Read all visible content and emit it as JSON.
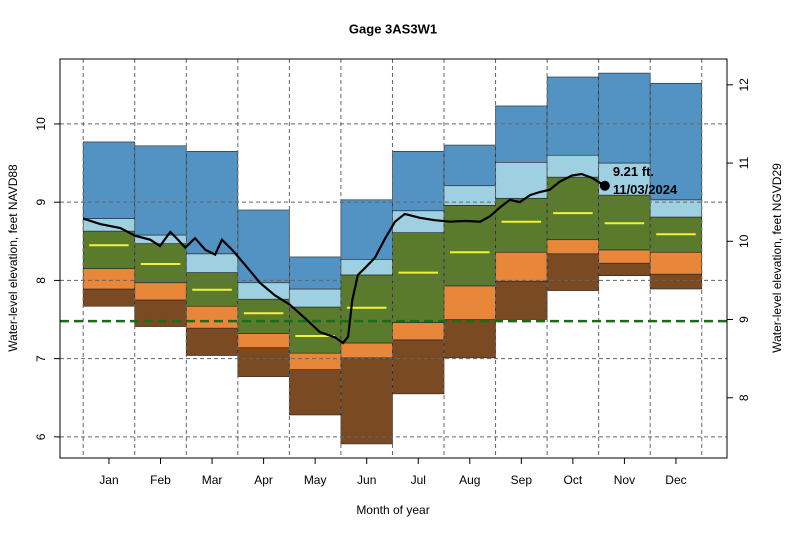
{
  "chart_data": {
    "type": "band",
    "title": "Gage 3AS3W1",
    "x_label": "Month of year",
    "y_label": "Water-level elevation, feet NAVD88",
    "y2_label": "Water-level elevation, feet NGVD29",
    "categories": [
      "Jan",
      "Feb",
      "Mar",
      "Apr",
      "May",
      "Jun",
      "Jul",
      "Aug",
      "Sep",
      "Oct",
      "Nov",
      "Dec"
    ],
    "xlim": [
      -0.45,
      12.49
    ],
    "ylim": [
      5.73,
      10.83
    ],
    "yticks": [
      6,
      7,
      8,
      9,
      10
    ],
    "y2lim": [
      7.23,
      12.33
    ],
    "y2ticks": [
      8,
      9,
      10,
      11,
      12
    ],
    "grid": true,
    "bottom": [
      7.67,
      7.41,
      7.04,
      6.77,
      6.28,
      5.91,
      6.55,
      7.01,
      7.5,
      7.87,
      8.06,
      7.89
    ],
    "series": [
      {
        "color": "#7a4a22",
        "values": [
          7.89,
          7.75,
          7.39,
          7.14,
          6.86,
          7.01,
          7.24,
          7.5,
          7.99,
          8.34,
          8.22,
          8.08
        ]
      },
      {
        "color": "#e8873a",
        "values": [
          8.15,
          7.97,
          7.67,
          7.32,
          7.07,
          7.2,
          7.46,
          7.93,
          8.36,
          8.52,
          8.39,
          8.36
        ]
      },
      {
        "color": "#5a7a2c",
        "values": [
          8.63,
          8.47,
          8.1,
          7.76,
          7.66,
          8.07,
          8.61,
          8.96,
          9.05,
          9.32,
          9.09,
          8.81
        ]
      },
      {
        "color": "#9fd0e2",
        "values": [
          8.79,
          8.58,
          8.34,
          7.97,
          7.89,
          8.27,
          8.89,
          9.21,
          9.51,
          9.6,
          9.5,
          9.03
        ]
      },
      {
        "color": "#5393c4",
        "values": [
          9.77,
          9.72,
          9.65,
          8.9,
          8.3,
          9.03,
          9.65,
          9.73,
          10.23,
          10.6,
          10.65,
          10.52
        ]
      }
    ],
    "median": {
      "color": "#f2f23a",
      "values": [
        8.45,
        8.21,
        7.88,
        7.58,
        7.29,
        7.65,
        8.1,
        8.36,
        8.75,
        8.86,
        8.73,
        8.59
      ]
    },
    "reference": {
      "color": "#1a6b1a",
      "value": 7.48
    },
    "line": {
      "color": "#000000",
      "x": [
        0,
        0.33,
        0.72,
        1.01,
        1.3,
        1.49,
        1.69,
        1.84,
        1.98,
        2.17,
        2.37,
        2.56,
        2.69,
        2.89,
        3.14,
        3.43,
        3.72,
        4.01,
        4.3,
        4.59,
        4.89,
        5.04,
        5.14,
        5.22,
        5.33,
        5.47,
        5.66,
        5.86,
        6.05,
        6.24,
        6.53,
        6.82,
        7.12,
        7.41,
        7.7,
        7.89,
        8.08,
        8.28,
        8.47,
        8.67,
        8.86,
        9.05,
        9.24,
        9.48,
        9.67,
        9.87,
        10.12
      ],
      "values": [
        8.79,
        8.72,
        8.67,
        8.57,
        8.52,
        8.44,
        8.62,
        8.52,
        8.42,
        8.54,
        8.39,
        8.33,
        8.52,
        8.39,
        8.2,
        7.97,
        7.81,
        7.69,
        7.52,
        7.34,
        7.27,
        7.2,
        7.28,
        7.75,
        8.07,
        8.16,
        8.29,
        8.54,
        8.75,
        8.85,
        8.8,
        8.77,
        8.75,
        8.76,
        8.75,
        8.82,
        8.93,
        9.03,
        9.0,
        9.09,
        9.13,
        9.16,
        9.26,
        9.34,
        9.36,
        9.31,
        9.21
      ]
    },
    "current_label": "9.21 ft.",
    "current_date": "11/03/2024"
  }
}
